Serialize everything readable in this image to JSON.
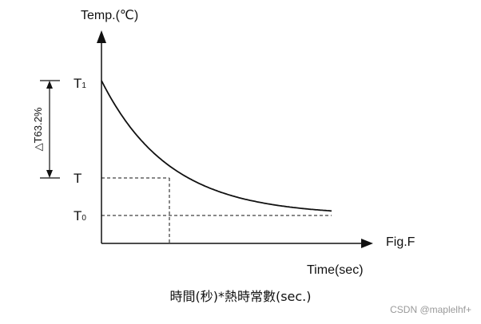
{
  "chart_data": {
    "type": "line",
    "y_axis_label": "Temp.(℃)",
    "x_axis_label": "Time(sec)",
    "figure_label": "Fig.F",
    "y_ticks": [
      {
        "name": "T1",
        "base": "T",
        "sub": "1",
        "value": 1.0
      },
      {
        "name": "T",
        "base": "T",
        "sub": "",
        "value": 0.368
      },
      {
        "name": "T0",
        "base": "T",
        "sub": "0",
        "value": 0.0
      }
    ],
    "delta_label": "△T63.2%",
    "series": [
      {
        "type": "exponential-decay",
        "from": "T1",
        "to": "T0"
      }
    ],
    "marker": {
      "y": "T",
      "note": "dashed guides at T"
    },
    "grid": false
  },
  "caption": "時間(秒)*熱時常數(sec.)",
  "watermark": "CSDN @maplelhf+"
}
